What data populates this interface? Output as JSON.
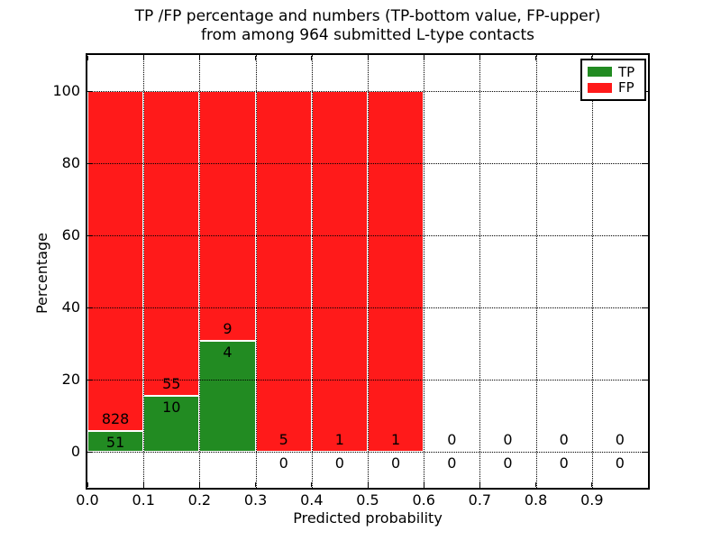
{
  "figure": {
    "title_line1": "TP /FP percentage and numbers (TP-bottom value, FP-upper)",
    "title_line2": "from among 964 submitted L-type contacts",
    "xlabel": "Predicted probability",
    "ylabel": "Percentage"
  },
  "colors": {
    "tp_green": "#228B22",
    "fp_red": "#FF1A1A",
    "grid": "#000000",
    "background": "#FFFFFF"
  },
  "legend": {
    "items": [
      {
        "label": "TP",
        "color": "#228B22"
      },
      {
        "label": "FP",
        "color": "#FF1A1A"
      }
    ]
  },
  "chart_data": {
    "type": "bar",
    "stacked_percentage": true,
    "title": "TP /FP percentage and numbers (TP-bottom value, FP-upper) from among 964 submitted L-type contacts",
    "xlabel": "Predicted probability",
    "ylabel": "Percentage",
    "xlim": [
      0.0,
      1.0
    ],
    "ylim": [
      -10,
      110
    ],
    "xtick_labels": [
      "0.0",
      "0.1",
      "0.2",
      "0.3",
      "0.4",
      "0.5",
      "0.6",
      "0.7",
      "0.8",
      "0.9"
    ],
    "yticks": [
      0,
      20,
      40,
      60,
      80,
      100
    ],
    "grid": "dotted",
    "legend_position": "upper right",
    "total_contacts": 964,
    "series_names": [
      "TP",
      "FP"
    ],
    "bins": [
      {
        "x_start": 0.0,
        "x_end": 0.1,
        "tp_count": 51,
        "fp_count": 828,
        "tp_pct": 5.8,
        "fp_pct": 94.2,
        "bar": true
      },
      {
        "x_start": 0.1,
        "x_end": 0.2,
        "tp_count": 10,
        "fp_count": 55,
        "tp_pct": 15.4,
        "fp_pct": 84.6,
        "bar": true
      },
      {
        "x_start": 0.2,
        "x_end": 0.3,
        "tp_count": 4,
        "fp_count": 9,
        "tp_pct": 30.8,
        "fp_pct": 69.2,
        "bar": true
      },
      {
        "x_start": 0.3,
        "x_end": 0.4,
        "tp_count": 0,
        "fp_count": 5,
        "tp_pct": 0,
        "fp_pct": 100,
        "bar": true
      },
      {
        "x_start": 0.4,
        "x_end": 0.5,
        "tp_count": 0,
        "fp_count": 1,
        "tp_pct": 0,
        "fp_pct": 100,
        "bar": true
      },
      {
        "x_start": 0.5,
        "x_end": 0.6,
        "tp_count": 0,
        "fp_count": 1,
        "tp_pct": 0,
        "fp_pct": 100,
        "bar": true
      },
      {
        "x_start": 0.6,
        "x_end": 0.7,
        "tp_count": 0,
        "fp_count": 0,
        "tp_pct": 0,
        "fp_pct": 0,
        "bar": false
      },
      {
        "x_start": 0.7,
        "x_end": 0.8,
        "tp_count": 0,
        "fp_count": 0,
        "tp_pct": 0,
        "fp_pct": 0,
        "bar": false
      },
      {
        "x_start": 0.8,
        "x_end": 0.9,
        "tp_count": 0,
        "fp_count": 0,
        "tp_pct": 0,
        "fp_pct": 0,
        "bar": false
      },
      {
        "x_start": 0.9,
        "x_end": 1.0,
        "tp_count": 0,
        "fp_count": 0,
        "tp_pct": 0,
        "fp_pct": 0,
        "bar": false
      }
    ]
  }
}
